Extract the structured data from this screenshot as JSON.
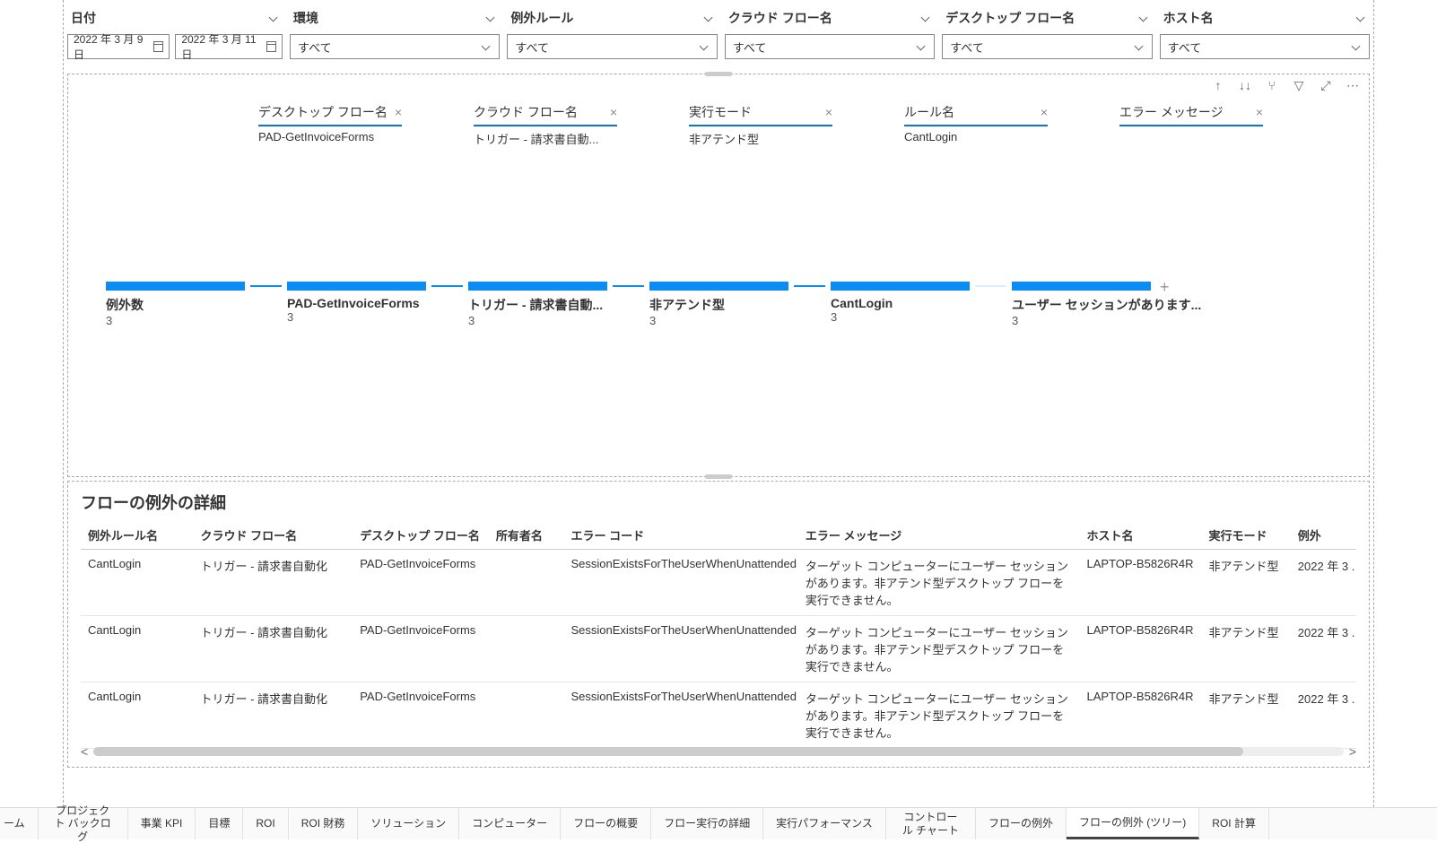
{
  "filters": {
    "date": {
      "label": "日付",
      "from": "2022 年 3 月 9 日",
      "to": "2022 年 3 月 11 日"
    },
    "env": {
      "label": "環境",
      "value": "すべて"
    },
    "rule": {
      "label": "例外ルール",
      "value": "すべて"
    },
    "cloud": {
      "label": "クラウド フロー名",
      "value": "すべて"
    },
    "desktop": {
      "label": "デスクトップ フロー名",
      "value": "すべて"
    },
    "host": {
      "label": "ホスト名",
      "value": "すべて"
    }
  },
  "chips": [
    {
      "label": "デスクトップ フロー名",
      "value": "PAD-GetInvoiceForms"
    },
    {
      "label": "クラウド フロー名",
      "value": "トリガー - 請求書自動..."
    },
    {
      "label": "実行モード",
      "value": "非アテンド型"
    },
    {
      "label": "ルール名",
      "value": "CantLogin"
    },
    {
      "label": "エラー メッセージ",
      "value": ""
    }
  ],
  "flow": [
    {
      "label": "例外数",
      "count": "3"
    },
    {
      "label": "PAD-GetInvoiceForms",
      "count": "3"
    },
    {
      "label": "トリガー - 請求書自動...",
      "count": "3"
    },
    {
      "label": "非アテンド型",
      "count": "3"
    },
    {
      "label": "CantLogin",
      "count": "3"
    },
    {
      "label": "ユーザー セッションがあります...",
      "count": "3"
    }
  ],
  "detail": {
    "title": "フローの例外の詳細",
    "columns": [
      "例外ルール名",
      "クラウド フロー名",
      "デスクトップ フロー名",
      "所有者名",
      "エラー コード",
      "エラー メッセージ",
      "ホスト名",
      "実行モード",
      "例外"
    ],
    "col_widths": [
      "120px",
      "170px",
      "145px",
      "80px",
      "250px",
      "300px",
      "130px",
      "95px",
      "70px"
    ],
    "rows": [
      [
        "CantLogin",
        "トリガー - 請求書自動化",
        "PAD-GetInvoiceForms",
        "",
        "SessionExistsForTheUserWhenUnattended",
        "ターゲット コンピューターにユーザー セッションがあります。非アテンド型デスクトップ フローを実行できません。",
        "LAPTOP-B5826R4R",
        "非アテンド型",
        "2022 年 3 ."
      ],
      [
        "CantLogin",
        "トリガー - 請求書自動化",
        "PAD-GetInvoiceForms",
        "",
        "SessionExistsForTheUserWhenUnattended",
        "ターゲット コンピューターにユーザー セッションがあります。非アテンド型デスクトップ フローを実行できません。",
        "LAPTOP-B5826R4R",
        "非アテンド型",
        "2022 年 3 ."
      ],
      [
        "CantLogin",
        "トリガー - 請求書自動化",
        "PAD-GetInvoiceForms",
        "",
        "SessionExistsForTheUserWhenUnattended",
        "ターゲット コンピューターにユーザー セッションがあります。非アテンド型デスクトップ フローを実行できません。",
        "LAPTOP-B5826R4R",
        "非アテンド型",
        "2022 年 3 ."
      ]
    ]
  },
  "tabs": [
    "ーム",
    "プロジェクト バックログ",
    "事業 KPI",
    "目標",
    "ROI",
    "ROI 財務",
    "ソリューション",
    "コンピューター",
    "フローの概要",
    "フロー実行の詳細",
    "実行パフォーマンス",
    "コントロール チャート",
    "フローの例外",
    "フローの例外 (ツリー)",
    "ROI 計算"
  ],
  "active_tab_index": 13,
  "colors": {
    "accent": "#0b8cf2",
    "bar_light": "#d9eefe",
    "chip_underline": "#0b73d9",
    "border_dash": "#aaaaaa"
  }
}
